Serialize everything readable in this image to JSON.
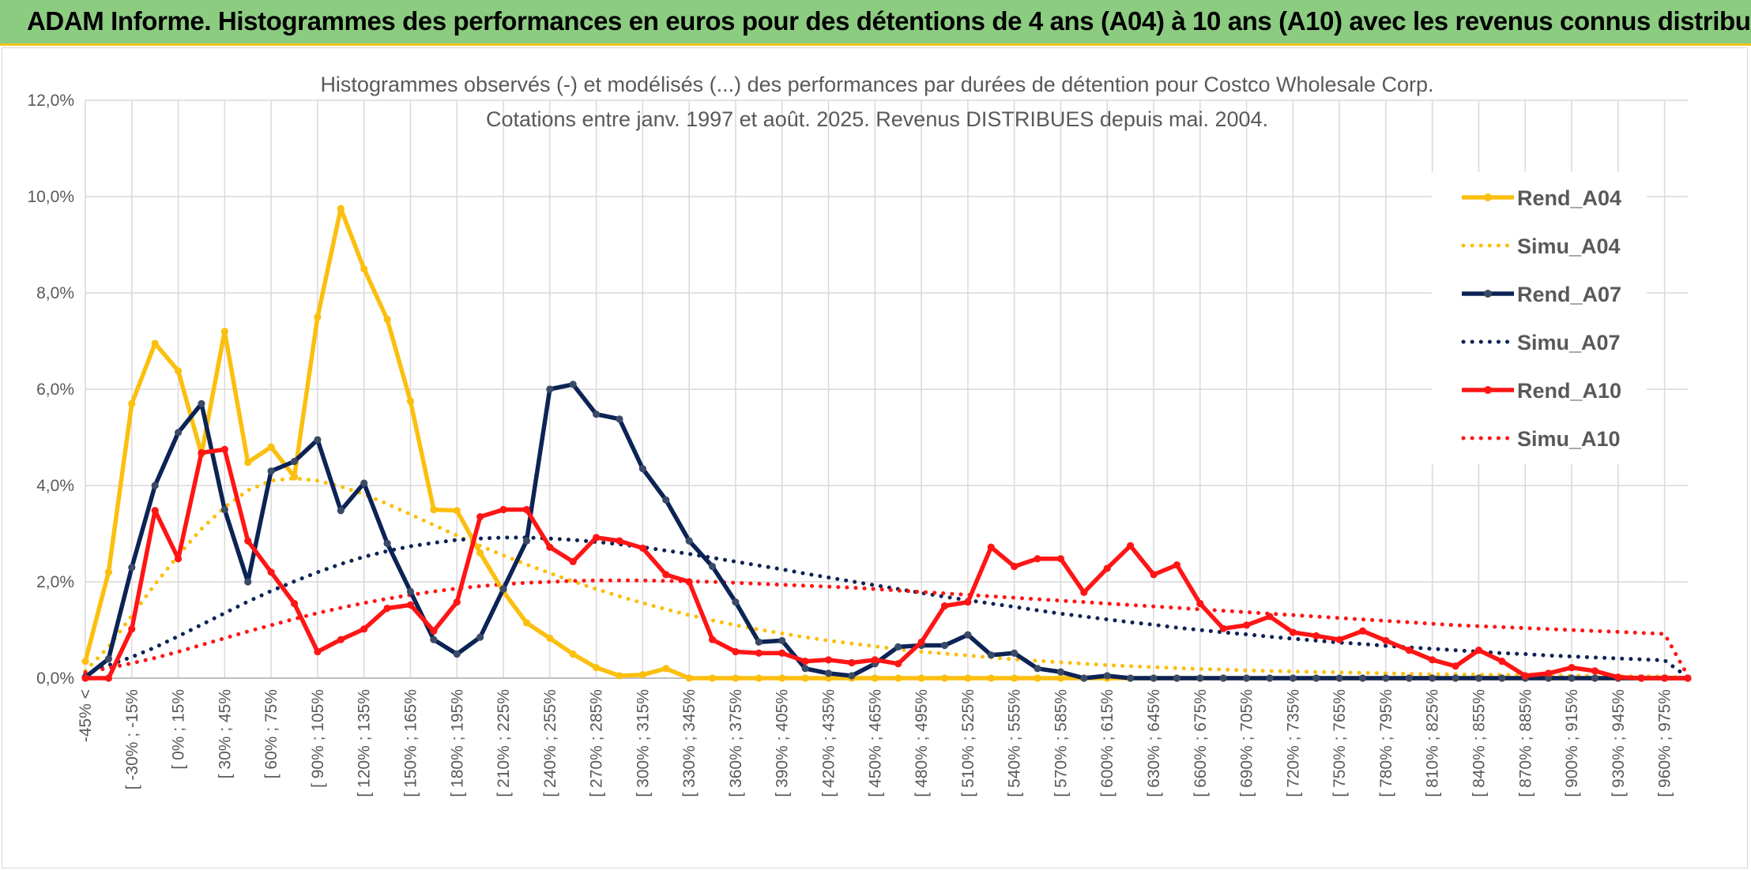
{
  "banner": {
    "title": "ADAM Informe. Histogrammes des performances en euros pour des détentions de 4 ans (A04) à 10 ans (A10) avec les revenus connus distribués"
  },
  "chart_data": {
    "type": "line",
    "title": "Histogrammes observés (-) et modélisés (...) des performances par durées de détention pour Costco Wholesale Corp.",
    "subtitle": "Cotations entre janv. 1997 et août. 2025. Revenus DISTRIBUES depuis mai. 2004.",
    "xlabel": "",
    "ylabel": "",
    "ylim": [
      0,
      0.12
    ],
    "y_ticks": [
      "0,0%",
      "2,0%",
      "4,0%",
      "6,0%",
      "8,0%",
      "10,0%",
      "12,0%"
    ],
    "grid": true,
    "legend_position": "right",
    "x_labels": [
      "-45% <",
      "[ -30% ; -15%",
      "[ 0% ; 15%",
      "[ 30% ; 45%",
      "[ 60% ; 75%",
      "[ 90% ; 105%",
      "[ 120% ; 135%",
      "[ 150% ; 165%",
      "[ 180% ; 195%",
      "[ 210% ; 225%",
      "[ 240% ; 255%",
      "[ 270% ; 285%",
      "[ 300% ; 315%",
      "[ 330% ; 345%",
      "[ 360% ; 375%",
      "[ 390% ; 405%",
      "[ 420% ; 435%",
      "[ 450% ; 465%",
      "[ 480% ; 495%",
      "[ 510% ; 525%",
      "[ 540% ; 555%",
      "[ 570% ; 585%",
      "[ 600% ; 615%",
      "[ 630% ; 645%",
      "[ 660% ; 675%",
      "[ 690% ; 705%",
      "[ 720% ; 735%",
      "[ 750% ; 765%",
      "[ 780% ; 795%",
      "[ 810% ; 825%",
      "[ 840% ; 855%",
      "[ 870% ; 885%",
      "[ 900% ; 915%",
      "[ 930% ; 945%",
      "[ 960% ; 975%"
    ],
    "series": [
      {
        "name": "Rend_A04",
        "style": "solid",
        "markers": true,
        "color": "#fbbf0f",
        "values": [
          0.0035,
          0.022,
          0.057,
          0.0695,
          0.0638,
          0.0465,
          0.072,
          0.0448,
          0.048,
          0.0418,
          0.075,
          0.0975,
          0.085,
          0.0745,
          0.0575,
          0.035,
          0.0348,
          0.026,
          0.018,
          0.0115,
          0.0083,
          0.005,
          0.0022,
          0.0005,
          0.0007,
          0.002,
          0,
          0,
          0,
          0,
          0,
          0,
          0,
          0,
          0,
          0,
          0,
          0,
          0,
          0,
          0,
          0,
          0,
          0,
          0,
          0,
          0,
          0,
          0,
          0,
          0,
          0,
          0,
          0,
          0,
          0,
          0,
          0,
          0,
          0,
          0,
          0,
          0,
          0,
          0,
          0,
          0,
          0,
          0,
          0
        ]
      },
      {
        "name": "Simu_A04",
        "style": "dotted",
        "markers": false,
        "color": "#fbbf0f",
        "values": [
          0.0015,
          0.0065,
          0.013,
          0.0195,
          0.0255,
          0.031,
          0.0355,
          0.039,
          0.041,
          0.0415,
          0.041,
          0.0398,
          0.0382,
          0.0362,
          0.034,
          0.0318,
          0.0296,
          0.0275,
          0.0255,
          0.0236,
          0.0218,
          0.0201,
          0.0185,
          0.017,
          0.0156,
          0.0143,
          0.0131,
          0.012,
          0.011,
          0.0101,
          0.0093,
          0.0085,
          0.0078,
          0.0072,
          0.0066,
          0.006,
          0.0055,
          0.0051,
          0.0047,
          0.0043,
          0.0039,
          0.0036,
          0.0033,
          0.003,
          0.0027,
          0.0025,
          0.0023,
          0.0021,
          0.0019,
          0.0018,
          0.0016,
          0.0015,
          0.0014,
          0.0013,
          0.0012,
          0.0011,
          0.001,
          0.0009,
          0.0008,
          0.0008,
          0.0007,
          0.0007,
          0.0006,
          0.0006,
          0.0005,
          0.0005,
          0.0004,
          0.0004,
          0.0004,
          0
        ]
      },
      {
        "name": "Rend_A07",
        "style": "solid",
        "markers": true,
        "color": "#0c2355",
        "values": [
          0.0002,
          0.004,
          0.023,
          0.04,
          0.051,
          0.057,
          0.035,
          0.02,
          0.043,
          0.045,
          0.0495,
          0.0348,
          0.0405,
          0.028,
          0.018,
          0.008,
          0.005,
          0.0085,
          0.0185,
          0.0285,
          0.06,
          0.061,
          0.0548,
          0.0538,
          0.0435,
          0.037,
          0.0285,
          0.0232,
          0.0158,
          0.0075,
          0.0078,
          0.002,
          0.001,
          0.0005,
          0.003,
          0.0065,
          0.0068,
          0.0068,
          0.009,
          0.0048,
          0.0052,
          0.002,
          0.0013,
          0,
          0.0005,
          0,
          0,
          0,
          0,
          0,
          0,
          0,
          0,
          0,
          0,
          0,
          0,
          0,
          0,
          0,
          0,
          0,
          0,
          0,
          0,
          0,
          0,
          0,
          0,
          0
        ]
      },
      {
        "name": "Simu_A07",
        "style": "dotted",
        "markers": false,
        "color": "#0c2355",
        "values": [
          0.001,
          0.0027,
          0.0044,
          0.0064,
          0.0087,
          0.0111,
          0.0135,
          0.0159,
          0.0181,
          0.0201,
          0.022,
          0.0237,
          0.0252,
          0.0264,
          0.0274,
          0.0281,
          0.0287,
          0.029,
          0.0292,
          0.0292,
          0.029,
          0.0287,
          0.0283,
          0.0278,
          0.0272,
          0.0265,
          0.0258,
          0.025,
          0.0242,
          0.0234,
          0.0226,
          0.0217,
          0.0209,
          0.0201,
          0.0193,
          0.0185,
          0.0177,
          0.0169,
          0.0162,
          0.0155,
          0.0148,
          0.0141,
          0.0134,
          0.0128,
          0.0122,
          0.0116,
          0.0111,
          0.0105,
          0.01,
          0.0095,
          0.0091,
          0.0086,
          0.0082,
          0.0078,
          0.0074,
          0.0071,
          0.0067,
          0.0064,
          0.0061,
          0.0058,
          0.0055,
          0.0052,
          0.005,
          0.0047,
          0.0045,
          0.0043,
          0.0041,
          0.0039,
          0.0037,
          0.0002
        ]
      },
      {
        "name": "Rend_A10",
        "style": "solid",
        "markers": true,
        "color": "#ff1515",
        "values": [
          0,
          0,
          0.0102,
          0.0348,
          0.0248,
          0.0468,
          0.0475,
          0.0285,
          0.022,
          0.0155,
          0.0055,
          0.008,
          0.0102,
          0.0145,
          0.0152,
          0.0098,
          0.0158,
          0.0335,
          0.035,
          0.035,
          0.0272,
          0.0242,
          0.0292,
          0.0285,
          0.027,
          0.0215,
          0.02,
          0.008,
          0.0055,
          0.0052,
          0.0052,
          0.0035,
          0.0038,
          0.0032,
          0.0038,
          0.003,
          0.0075,
          0.015,
          0.0158,
          0.0272,
          0.0232,
          0.0248,
          0.0248,
          0.0178,
          0.0228,
          0.0275,
          0.0215,
          0.0235,
          0.0155,
          0.0103,
          0.011,
          0.0128,
          0.0095,
          0.0088,
          0.008,
          0.0098,
          0.0078,
          0.0058,
          0.0038,
          0.0025,
          0.0058,
          0.0035,
          0.0005,
          0.001,
          0.0022,
          0.0015,
          0.0002,
          0,
          0,
          0
        ]
      },
      {
        "name": "Simu_A10",
        "style": "dotted",
        "markers": false,
        "color": "#ff1515",
        "values": [
          0.0012,
          0.0021,
          0.0031,
          0.0042,
          0.0055,
          0.0069,
          0.0083,
          0.0097,
          0.011,
          0.0123,
          0.0135,
          0.0146,
          0.0156,
          0.0165,
          0.0173,
          0.018,
          0.0186,
          0.0191,
          0.0195,
          0.0198,
          0.02,
          0.0202,
          0.0203,
          0.0203,
          0.0203,
          0.0202,
          0.0201,
          0.02,
          0.0198,
          0.0196,
          0.0194,
          0.0192,
          0.019,
          0.0188,
          0.0185,
          0.0182,
          0.0179,
          0.0176,
          0.0173,
          0.017,
          0.0167,
          0.0164,
          0.0161,
          0.0158,
          0.0155,
          0.0152,
          0.0149,
          0.0146,
          0.0143,
          0.014,
          0.0137,
          0.0134,
          0.0131,
          0.0128,
          0.0125,
          0.0122,
          0.0119,
          0.0116,
          0.0113,
          0.011,
          0.0108,
          0.0106,
          0.0104,
          0.0102,
          0.01,
          0.0098,
          0.0096,
          0.0094,
          0.0092,
          0.0005
        ]
      }
    ]
  }
}
